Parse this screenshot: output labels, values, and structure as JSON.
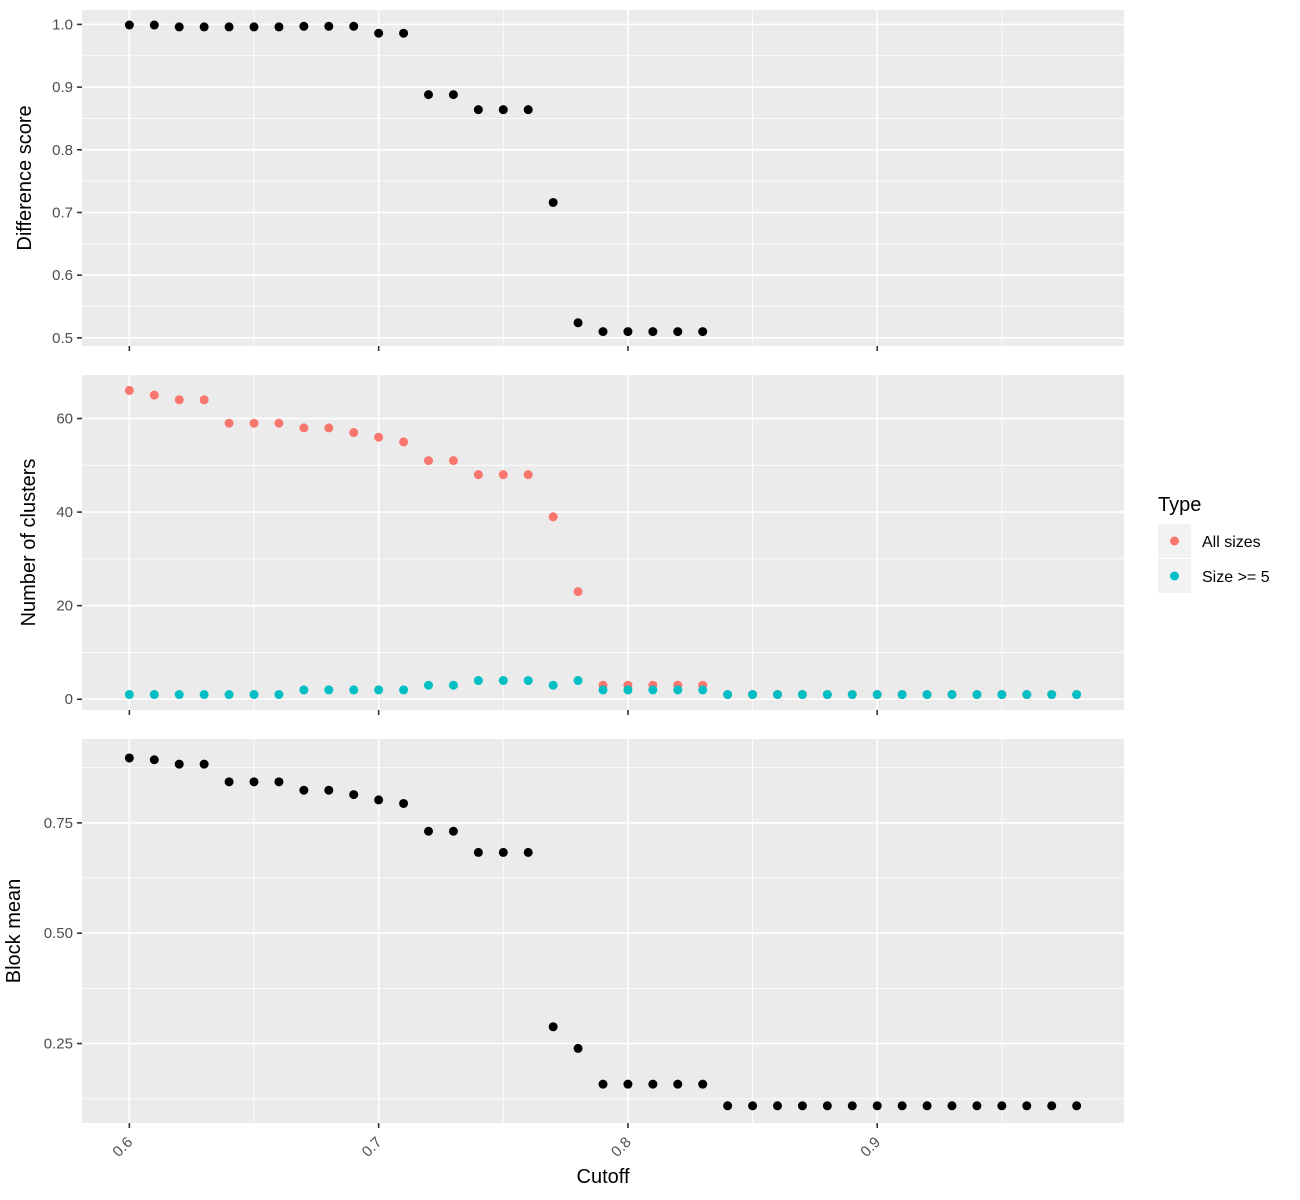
{
  "chart_data": {
    "type": "scatter",
    "xlabel": "Cutoff",
    "x_ticks": [
      0.6,
      0.7,
      0.8,
      0.9
    ],
    "x_tick_labels": [
      "0.6",
      "0.7",
      "0.8",
      "0.9"
    ],
    "xlim": [
      0.581,
      0.999
    ],
    "grid": true,
    "panels": [
      {
        "ylabel": "Difference score",
        "ylim": [
          0.487,
          1.023
        ],
        "y_ticks": [
          0.5,
          0.6,
          0.7,
          0.8,
          0.9,
          1.0
        ],
        "y_tick_labels": [
          "0.5",
          "0.6",
          "0.7",
          "0.8",
          "0.9",
          "1.0"
        ],
        "series": [
          {
            "color": "#000000",
            "x": [
              0.6,
              0.61,
              0.62,
              0.63,
              0.64,
              0.65,
              0.66,
              0.67,
              0.68,
              0.69,
              0.7,
              0.71,
              0.72,
              0.73,
              0.74,
              0.75,
              0.76,
              0.77,
              0.78,
              0.79,
              0.8,
              0.81,
              0.82,
              0.83
            ],
            "y": [
              0.999,
              0.999,
              0.996,
              0.996,
              0.996,
              0.996,
              0.996,
              0.997,
              0.997,
              0.997,
              0.986,
              0.986,
              0.888,
              0.888,
              0.864,
              0.864,
              0.864,
              0.716,
              0.524,
              0.51,
              0.51,
              0.51,
              0.51,
              0.51
            ]
          }
        ]
      },
      {
        "ylabel": "Number of clusters",
        "ylim": [
          -2.3,
          69.3
        ],
        "y_ticks": [
          0,
          20,
          40,
          60
        ],
        "y_tick_labels": [
          "0",
          "20",
          "40",
          "60"
        ],
        "series": [
          {
            "name": "All sizes",
            "color": "#F8766D",
            "x": [
              0.6,
              0.61,
              0.62,
              0.63,
              0.64,
              0.65,
              0.66,
              0.67,
              0.68,
              0.69,
              0.7,
              0.71,
              0.72,
              0.73,
              0.74,
              0.75,
              0.76,
              0.77,
              0.78,
              0.79,
              0.8,
              0.81,
              0.82,
              0.83,
              0.84,
              0.85,
              0.86,
              0.87,
              0.88,
              0.89,
              0.9,
              0.91,
              0.92,
              0.93,
              0.94,
              0.95,
              0.96,
              0.97,
              0.98
            ],
            "y": [
              66,
              65,
              64,
              64,
              59,
              59,
              59,
              58,
              58,
              57,
              56,
              55,
              51,
              51,
              48,
              48,
              48,
              39,
              23,
              3,
              3,
              3,
              3,
              3,
              1,
              1,
              1,
              1,
              1,
              1,
              1,
              1,
              1,
              1,
              1,
              1,
              1,
              1,
              1
            ]
          },
          {
            "name": "Size >= 5",
            "color": "#00BFC4",
            "x": [
              0.6,
              0.61,
              0.62,
              0.63,
              0.64,
              0.65,
              0.66,
              0.67,
              0.68,
              0.69,
              0.7,
              0.71,
              0.72,
              0.73,
              0.74,
              0.75,
              0.76,
              0.77,
              0.78,
              0.79,
              0.8,
              0.81,
              0.82,
              0.83,
              0.84,
              0.85,
              0.86,
              0.87,
              0.88,
              0.89,
              0.9,
              0.91,
              0.92,
              0.93,
              0.94,
              0.95,
              0.96,
              0.97,
              0.98
            ],
            "y": [
              1,
              1,
              1,
              1,
              1,
              1,
              1,
              2,
              2,
              2,
              2,
              2,
              3,
              3,
              4,
              4,
              4,
              3,
              4,
              2,
              2,
              2,
              2,
              2,
              1,
              1,
              1,
              1,
              1,
              1,
              1,
              1,
              1,
              1,
              1,
              1,
              1,
              1,
              1
            ]
          }
        ]
      },
      {
        "ylabel": "Block mean",
        "ylim": [
          0.07,
          0.94
        ],
        "y_ticks": [
          0.25,
          0.5,
          0.75
        ],
        "y_tick_labels": [
          "0.25",
          "0.50",
          "0.75"
        ],
        "series": [
          {
            "color": "#000000",
            "x": [
              0.6,
              0.61,
              0.62,
              0.63,
              0.64,
              0.65,
              0.66,
              0.67,
              0.68,
              0.69,
              0.7,
              0.71,
              0.72,
              0.73,
              0.74,
              0.75,
              0.76,
              0.77,
              0.78,
              0.79,
              0.8,
              0.81,
              0.82,
              0.83,
              0.84,
              0.85,
              0.86,
              0.87,
              0.88,
              0.89,
              0.9,
              0.91,
              0.92,
              0.93,
              0.94,
              0.95,
              0.96,
              0.97,
              0.98
            ],
            "y": [
              0.897,
              0.893,
              0.883,
              0.883,
              0.843,
              0.843,
              0.843,
              0.824,
              0.824,
              0.814,
              0.802,
              0.794,
              0.731,
              0.731,
              0.683,
              0.683,
              0.683,
              0.288,
              0.239,
              0.158,
              0.158,
              0.158,
              0.158,
              0.158,
              0.109,
              0.109,
              0.109,
              0.109,
              0.109,
              0.109,
              0.109,
              0.109,
              0.109,
              0.109,
              0.109,
              0.109,
              0.109,
              0.109,
              0.109
            ]
          }
        ]
      }
    ],
    "legend": {
      "title": "Type",
      "position": "right",
      "items": [
        {
          "label": "All sizes",
          "color": "#F8766D"
        },
        {
          "label": "Size >= 5",
          "color": "#00BFC4"
        }
      ]
    }
  }
}
